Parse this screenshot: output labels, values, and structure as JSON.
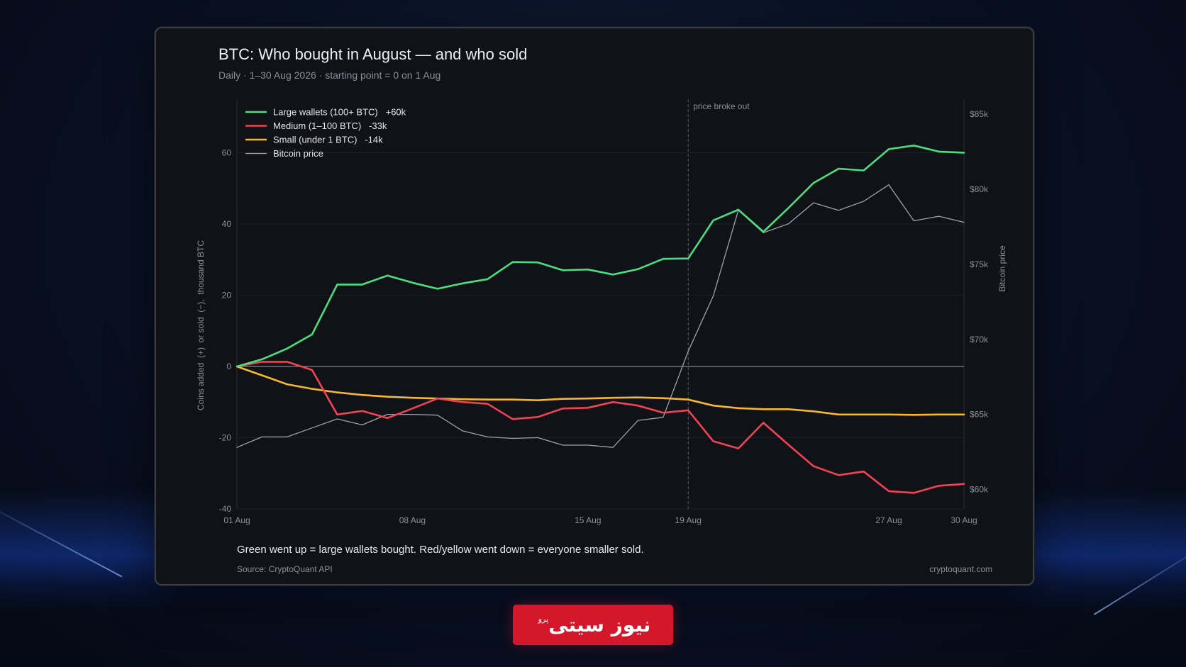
{
  "colors": {
    "background": "#0a1226",
    "card": "#111217",
    "large": "#4ade80",
    "medium": "#f04452",
    "small": "#f5b82e",
    "price": "#9ca3af",
    "logo": "#d4172a"
  },
  "header": {
    "title": "BTC: Who bought in August — and who sold",
    "subtitle": "Daily  ·  1–30 Aug 2026  ·  starting point = 0 on 1 Aug"
  },
  "footer": {
    "note": "Green went up = large wallets bought. Red/yellow went down = everyone smaller sold.",
    "source": "Source: CryptoQuant API",
    "site": "cryptoquant.com"
  },
  "logo": {
    "text": "نیوز سیتی",
    "sup": "پرو"
  },
  "chart_data": {
    "type": "line",
    "title": "BTC: Who bought in August — and who sold",
    "subtitle": "Daily  ·  1–30 Aug 2026  ·  starting point = 0 on 1 Aug",
    "ylabel": "Coins added  (+)  or sold  (−),  thousand BTC",
    "y2label": "Bitcoin price",
    "ylim": [
      -40,
      75
    ],
    "y2lim": [
      58700,
      86000
    ],
    "yticks": [
      -40,
      -20,
      0,
      20,
      40,
      60
    ],
    "y2ticks": [
      "$60k",
      "$65k",
      "$70k",
      "$75k",
      "$80k",
      "$85k"
    ],
    "y2tick_values": [
      60000,
      65000,
      70000,
      75000,
      80000,
      85000
    ],
    "x": [
      1,
      2,
      3,
      4,
      5,
      6,
      7,
      8,
      9,
      10,
      11,
      12,
      13,
      14,
      15,
      16,
      17,
      18,
      19,
      20,
      21,
      22,
      23,
      24,
      25,
      26,
      27,
      28,
      29,
      30
    ],
    "xticks": [
      {
        "day": 1,
        "label": "01 Aug"
      },
      {
        "day": 8,
        "label": "08 Aug"
      },
      {
        "day": 15,
        "label": "15 Aug"
      },
      {
        "day": 19,
        "label": "19 Aug"
      },
      {
        "day": 27,
        "label": "27 Aug"
      },
      {
        "day": 30,
        "label": "30 Aug"
      }
    ],
    "annotation": {
      "day": 19,
      "label": "price broke out"
    },
    "legend_position": "top-left",
    "grid": true,
    "series": [
      {
        "name": "Large wallets (100+ BTC)   +60k",
        "key": "large",
        "axis": "left",
        "values": [
          0,
          2,
          5,
          9,
          23,
          23,
          25.5,
          23.5,
          21.8,
          23.3,
          24.5,
          29.3,
          29.2,
          27,
          27.2,
          25.8,
          27.3,
          30.2,
          30.3,
          41,
          44,
          37.8,
          44.5,
          51.5,
          55.5,
          55,
          61,
          62,
          60.3,
          60
        ]
      },
      {
        "name": "Medium (1–100 BTC)   -33k",
        "key": "medium",
        "axis": "left",
        "values": [
          0,
          1.3,
          1.3,
          -1,
          -13.5,
          -12.5,
          -14.5,
          -11.8,
          -9,
          -10,
          -10.5,
          -14.8,
          -14.2,
          -11.8,
          -11.6,
          -10,
          -11,
          -13,
          -12.3,
          -21,
          -23,
          -15.8,
          -22,
          -28,
          -30.5,
          -29.5,
          -35,
          -35.5,
          -33.5,
          -33
        ]
      },
      {
        "name": "Small (under 1 BTC)   -14k",
        "key": "small",
        "axis": "left",
        "values": [
          0,
          -2.5,
          -5,
          -6.3,
          -7.3,
          -8,
          -8.5,
          -8.8,
          -9,
          -9.2,
          -9.3,
          -9.3,
          -9.5,
          -9.1,
          -9,
          -8.8,
          -8.7,
          -8.9,
          -9.3,
          -11,
          -11.7,
          -12,
          -12,
          -12.6,
          -13.5,
          -13.5,
          -13.5,
          -13.6,
          -13.5,
          -13.5
        ]
      },
      {
        "name": "Bitcoin price",
        "key": "price",
        "axis": "right",
        "values": [
          62800,
          63500,
          63500,
          64100,
          64700,
          64300,
          65000,
          65000,
          64950,
          63900,
          63500,
          63400,
          63450,
          62950,
          62950,
          62800,
          64600,
          64800,
          69200,
          72900,
          78600,
          77100,
          77700,
          79100,
          78600,
          79200,
          80300,
          77900,
          78200,
          77800
        ]
      }
    ]
  }
}
